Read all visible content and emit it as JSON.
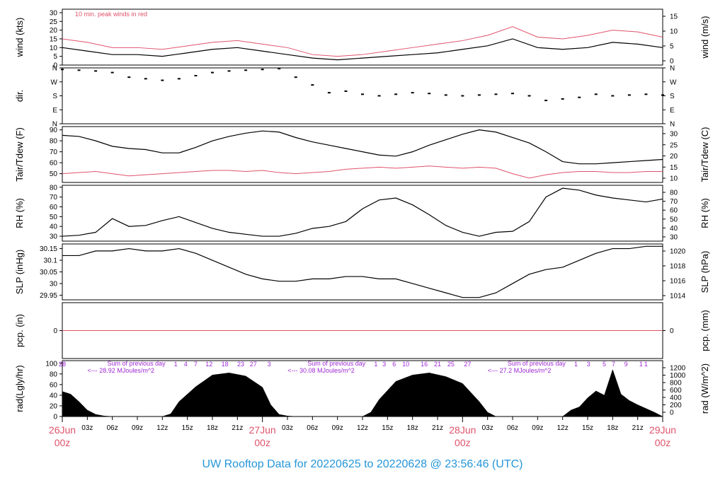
{
  "title": "UW Rooftop Data for 20220625  to  20220628 @ 23:56:46  (UTC)",
  "colors": {
    "main": "#000000",
    "red": "#df536b",
    "purple": "#9d29d4",
    "title": "#2596d8",
    "frame": "#000000"
  },
  "chart_data": [
    {
      "id": "wind",
      "type": "line",
      "ylabel": "wind (kts)",
      "ylabel_right": "wind (m/s)",
      "ylim": [
        0,
        32
      ],
      "ticks": [
        0,
        5,
        10,
        15,
        20,
        25,
        30
      ],
      "ticks_right": [
        0,
        5,
        10,
        15
      ],
      "annotation": "10 min. peak winds in red",
      "series": [
        {
          "color": "#000000",
          "x": [
            0,
            3,
            6,
            9,
            12,
            15,
            18,
            21,
            24,
            27,
            30,
            33,
            36,
            39,
            42,
            45,
            48,
            51,
            54,
            57,
            60,
            63,
            66,
            69,
            72
          ],
          "values": [
            10,
            8,
            6,
            6,
            5,
            7,
            9,
            10,
            8,
            6,
            4,
            3,
            4,
            5,
            6,
            7,
            9,
            11,
            15,
            10,
            9,
            10,
            13,
            12,
            10
          ]
        },
        {
          "color": "#df536b",
          "x": [
            0,
            3,
            6,
            9,
            12,
            15,
            18,
            21,
            24,
            27,
            30,
            33,
            36,
            39,
            42,
            45,
            48,
            51,
            54,
            57,
            60,
            63,
            66,
            69,
            72
          ],
          "values": [
            15,
            13,
            10,
            10,
            9,
            11,
            13,
            14,
            12,
            10,
            6,
            5,
            6,
            8,
            10,
            12,
            14,
            17,
            22,
            16,
            15,
            17,
            20,
            19,
            16
          ]
        }
      ]
    },
    {
      "id": "dir",
      "type": "scatter",
      "ylabel": "dir.",
      "ylim": [
        0,
        360
      ],
      "tick_labels": [
        "N",
        "E",
        "S",
        "W",
        "N"
      ],
      "tick_values": [
        0,
        90,
        180,
        270,
        360
      ],
      "tick_labels_right": [
        "N",
        "E",
        "S",
        "W",
        "N"
      ],
      "series": [
        {
          "color": "#000000",
          "x": [
            0,
            2,
            4,
            6,
            8,
            10,
            12,
            14,
            16,
            18,
            20,
            22,
            24,
            26,
            28,
            30,
            32,
            34,
            36,
            38,
            40,
            42,
            44,
            46,
            48,
            50,
            52,
            54,
            56,
            58,
            60,
            62,
            64,
            66,
            68,
            70,
            72
          ],
          "values": [
            350,
            345,
            340,
            330,
            300,
            290,
            280,
            290,
            310,
            330,
            340,
            345,
            350,
            355,
            300,
            250,
            200,
            210,
            190,
            180,
            190,
            200,
            195,
            185,
            180,
            185,
            190,
            195,
            180,
            150,
            160,
            170,
            190,
            180,
            185,
            190,
            185
          ]
        }
      ]
    },
    {
      "id": "temp",
      "type": "line",
      "ylabel": "Tair/Tdew (F)",
      "ylabel_right": "Tair/Tdew (C)",
      "ylim": [
        42,
        93
      ],
      "ticks": [
        50,
        60,
        70,
        80,
        90
      ],
      "ticks_right": [
        10,
        15,
        20,
        25,
        30
      ],
      "series": [
        {
          "name": "Tair",
          "color": "#000000",
          "x": [
            0,
            2,
            4,
            6,
            8,
            10,
            12,
            14,
            16,
            18,
            20,
            22,
            24,
            26,
            28,
            30,
            32,
            34,
            36,
            38,
            40,
            42,
            44,
            46,
            48,
            50,
            52,
            54,
            56,
            58,
            60,
            62,
            64,
            66,
            68,
            70,
            72
          ],
          "values": [
            85,
            84,
            80,
            75,
            73,
            72,
            69,
            69,
            74,
            80,
            84,
            87,
            89,
            88,
            83,
            79,
            76,
            73,
            70,
            67,
            66,
            70,
            76,
            81,
            86,
            90,
            88,
            83,
            78,
            70,
            61,
            59,
            59,
            60,
            61,
            62,
            63
          ]
        },
        {
          "name": "Tdew",
          "color": "#df536b",
          "x": [
            0,
            2,
            4,
            6,
            8,
            10,
            12,
            14,
            16,
            18,
            20,
            22,
            24,
            26,
            28,
            30,
            32,
            34,
            36,
            38,
            40,
            42,
            44,
            46,
            48,
            50,
            52,
            54,
            56,
            58,
            60,
            62,
            64,
            66,
            68,
            70,
            72
          ],
          "values": [
            50,
            51,
            52,
            50,
            48,
            49,
            50,
            51,
            52,
            53,
            53,
            52,
            53,
            51,
            50,
            51,
            52,
            54,
            55,
            56,
            55,
            56,
            57,
            56,
            55,
            56,
            55,
            50,
            46,
            49,
            51,
            52,
            52,
            51,
            51,
            52,
            52
          ]
        }
      ]
    },
    {
      "id": "rh",
      "type": "line",
      "ylabel": "RH (%)",
      "ylabel_right": "RH (%)",
      "ylim": [
        25,
        82
      ],
      "ticks": [
        30,
        40,
        50,
        60,
        70,
        80
      ],
      "ticks_right": [
        30,
        40,
        50,
        60,
        70,
        80
      ],
      "series": [
        {
          "color": "#000000",
          "x": [
            0,
            2,
            4,
            6,
            8,
            10,
            12,
            14,
            16,
            18,
            20,
            22,
            24,
            26,
            28,
            30,
            32,
            34,
            36,
            38,
            40,
            42,
            44,
            46,
            48,
            50,
            52,
            54,
            56,
            58,
            60,
            62,
            64,
            66,
            68,
            70,
            72
          ],
          "values": [
            30,
            31,
            34,
            48,
            40,
            41,
            46,
            50,
            44,
            38,
            34,
            32,
            30,
            30,
            33,
            38,
            40,
            45,
            58,
            67,
            69,
            62,
            52,
            41,
            34,
            30,
            34,
            35,
            45,
            70,
            79,
            77,
            72,
            69,
            67,
            65,
            68
          ]
        }
      ]
    },
    {
      "id": "slp",
      "type": "line",
      "ylabel": "SLP (inHg)",
      "ylabel_right": "SLP (hPa)",
      "ylim": [
        29.93,
        30.17
      ],
      "ticks": [
        29.95,
        30.0,
        30.05,
        30.1,
        30.15
      ],
      "ticks_right": [
        1014,
        1016,
        1018,
        1020
      ],
      "series": [
        {
          "color": "#000000",
          "x": [
            0,
            2,
            4,
            6,
            8,
            10,
            12,
            14,
            16,
            18,
            20,
            22,
            24,
            26,
            28,
            30,
            32,
            34,
            36,
            38,
            40,
            42,
            44,
            46,
            48,
            50,
            52,
            54,
            56,
            58,
            60,
            62,
            64,
            66,
            68,
            70,
            72
          ],
          "values": [
            30.12,
            30.12,
            30.14,
            30.14,
            30.15,
            30.14,
            30.14,
            30.15,
            30.13,
            30.1,
            30.07,
            30.04,
            30.02,
            30.01,
            30.01,
            30.02,
            30.02,
            30.03,
            30.03,
            30.02,
            30.02,
            30.0,
            29.98,
            29.96,
            29.94,
            29.94,
            29.96,
            30.0,
            30.04,
            30.06,
            30.07,
            30.1,
            30.13,
            30.15,
            30.15,
            30.16,
            30.16
          ]
        }
      ]
    },
    {
      "id": "pcp",
      "type": "line",
      "ylabel": "pcp. (in)",
      "ylabel_right": "pcp. (mm)",
      "ylim": [
        -1,
        1
      ],
      "ticks": [
        0
      ],
      "ticks_right": [
        0
      ],
      "series": [
        {
          "color": "#df536b",
          "x": [
            0,
            72
          ],
          "values": [
            0,
            0
          ]
        }
      ]
    },
    {
      "id": "rad",
      "type": "area",
      "ylabel": "rad(Lgly/hr)",
      "ylabel_right": "rad (W/m^2)",
      "ylim": [
        0,
        105
      ],
      "ticks": [
        0,
        20,
        40,
        60,
        80,
        100
      ],
      "ticks_right": [
        0,
        200,
        400,
        600,
        800,
        1000,
        1200
      ],
      "series": [
        {
          "color": "#000000",
          "x": [
            0,
            1,
            2,
            3,
            4,
            5,
            6,
            12,
            13,
            14,
            16,
            18,
            20,
            22,
            24,
            25,
            26,
            27,
            28,
            36,
            37,
            38,
            40,
            42,
            44,
            46,
            48,
            49,
            50,
            51,
            52,
            60,
            61,
            62,
            63,
            64,
            65,
            66,
            67,
            68,
            69,
            70,
            71,
            72
          ],
          "values": [
            47,
            42,
            28,
            12,
            4,
            1,
            0,
            0,
            5,
            28,
            56,
            78,
            82,
            76,
            55,
            22,
            4,
            1,
            0,
            0,
            8,
            32,
            66,
            78,
            82,
            75,
            62,
            45,
            28,
            8,
            0,
            0,
            12,
            18,
            35,
            48,
            40,
            88,
            42,
            30,
            22,
            15,
            8,
            0
          ]
        }
      ],
      "annotations": [
        {
          "text": "Sum of previous day",
          "x": 2
        },
        {
          "text": "<--- 28.92 MJoules/m^2",
          "x": 2
        },
        {
          "text": "Sum of previous day",
          "x": 26
        },
        {
          "text": "<--- 30.08 MJoules/m^2",
          "x": 26
        },
        {
          "text": "Sum of previous day",
          "x": 50
        },
        {
          "text": "<--- 27.2 MJoules/m^2",
          "x": 50
        }
      ],
      "top_ticks": [
        {
          "text": "28",
          "x": 0
        },
        {
          "text": "1",
          "x": 13.6
        },
        {
          "text": "4",
          "x": 14.8
        },
        {
          "text": "7",
          "x": 16
        },
        {
          "text": "12",
          "x": 17.6
        },
        {
          "text": "18",
          "x": 19.5
        },
        {
          "text": "23",
          "x": 21.4
        },
        {
          "text": "27",
          "x": 22.9
        },
        {
          "text": "3",
          "x": 24.8
        },
        {
          "text": "1",
          "x": 37.6
        },
        {
          "text": "3",
          "x": 38.6
        },
        {
          "text": "6",
          "x": 39.8
        },
        {
          "text": "10",
          "x": 41.2
        },
        {
          "text": "16",
          "x": 43.4
        },
        {
          "text": "21",
          "x": 45
        },
        {
          "text": "25",
          "x": 46.6
        },
        {
          "text": "27",
          "x": 48.6
        },
        {
          "text": "1",
          "x": 61.6
        },
        {
          "text": "3",
          "x": 63.1
        },
        {
          "text": "5",
          "x": 65
        },
        {
          "text": "7",
          "x": 66.1
        },
        {
          "text": "9",
          "x": 67.6
        },
        {
          "text": "1",
          "x": 69.4
        },
        {
          "text": "1",
          "x": 70
        }
      ]
    }
  ],
  "x_axis": {
    "ticks": [
      {
        "x": 0,
        "label": "26Jun",
        "sub": "00z",
        "major": true
      },
      {
        "x": 3,
        "label": "03z"
      },
      {
        "x": 6,
        "label": "06z"
      },
      {
        "x": 9,
        "label": "09z"
      },
      {
        "x": 12,
        "label": "12z"
      },
      {
        "x": 15,
        "label": "15z"
      },
      {
        "x": 18,
        "label": "18z"
      },
      {
        "x": 21,
        "label": "21z"
      },
      {
        "x": 24,
        "label": "27Jun",
        "sub": "00z",
        "major": true
      },
      {
        "x": 27,
        "label": "03z"
      },
      {
        "x": 30,
        "label": "06z"
      },
      {
        "x": 33,
        "label": "09z"
      },
      {
        "x": 36,
        "label": "12z"
      },
      {
        "x": 39,
        "label": "15z"
      },
      {
        "x": 42,
        "label": "18z"
      },
      {
        "x": 45,
        "label": "21z"
      },
      {
        "x": 48,
        "label": "28Jun",
        "sub": "00z",
        "major": true
      },
      {
        "x": 51,
        "label": "03z"
      },
      {
        "x": 54,
        "label": "06z"
      },
      {
        "x": 57,
        "label": "09z"
      },
      {
        "x": 60,
        "label": "12z"
      },
      {
        "x": 63,
        "label": "15z"
      },
      {
        "x": 66,
        "label": "18z"
      },
      {
        "x": 69,
        "label": "21z"
      },
      {
        "x": 72,
        "label": "29Jun",
        "sub": "00z",
        "major": true
      }
    ]
  }
}
